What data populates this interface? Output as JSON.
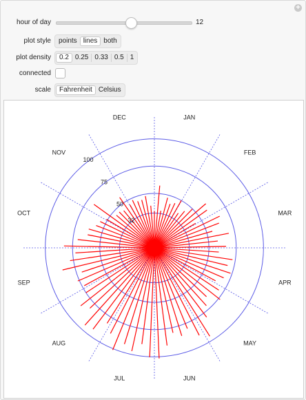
{
  "controls": {
    "hour_label": "hour of day",
    "hour_value": 12,
    "hour_display": "12",
    "hour_min": 0,
    "hour_max": 23,
    "plot_style_label": "plot style",
    "plot_style_options": [
      "points",
      "lines",
      "both"
    ],
    "plot_style_selected": "lines",
    "plot_density_label": "plot density",
    "plot_density_options": [
      "0.2",
      "0.25",
      "0.33",
      "0.5",
      "1"
    ],
    "plot_density_selected": "0.2",
    "connected_label": "connected",
    "connected_checked": false,
    "scale_label": "scale",
    "scale_options": [
      "Fahrenheit",
      "Celsius"
    ],
    "scale_selected": "Fahrenheit"
  },
  "chart_data": {
    "type": "polar-lines",
    "months": [
      "JAN",
      "FEB",
      "MAR",
      "APR",
      "MAY",
      "JUN",
      "JUL",
      "AUG",
      "SEP",
      "OCT",
      "NOV",
      "DEC"
    ],
    "radial_ticks": [
      "32",
      "50",
      "75",
      "100"
    ],
    "ring_color": "#5a5ae6",
    "line_color": "#ff0000",
    "radial_max": 120
  }
}
